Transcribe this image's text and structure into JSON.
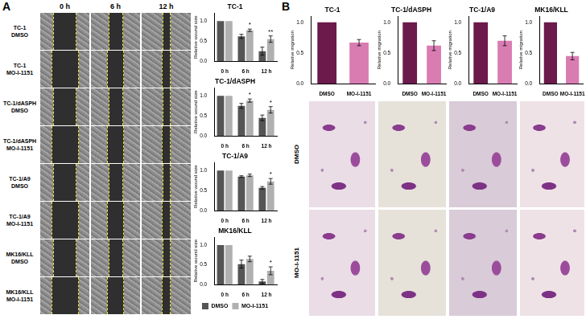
{
  "panel_labels": [
    "A",
    "B"
  ],
  "wound_images": {
    "columns": [
      "0 h",
      "6 h",
      "12 h"
    ],
    "rows": [
      [
        "TC-1",
        "DMSO"
      ],
      [
        "TC-1",
        "MO-I-1151"
      ],
      [
        "TC-1/dASPH",
        "DMSO"
      ],
      [
        "TC-1/dASPH",
        "MO-I-1151"
      ],
      [
        "TC-1/A9",
        "DMSO"
      ],
      [
        "TC-1/A9",
        "MO-I-1151"
      ],
      [
        "MK16/KLL",
        "DMSO"
      ],
      [
        "MK16/KLL",
        "MO-I-1151"
      ]
    ]
  },
  "transwell_images": {
    "rows": [
      "DMSO",
      "MO-I-1151"
    ]
  },
  "chart_data": [
    {
      "type": "bar",
      "title": "TC-1",
      "ylabel": "Relative wound size",
      "categories": [
        "0 h",
        "6 h",
        "12 h"
      ],
      "series": [
        {
          "name": "DMSO",
          "color": "#555555",
          "values": [
            1,
            0.62,
            0.25
          ],
          "errors": [
            null,
            0.05,
            0.1
          ]
        },
        {
          "name": "MO-I-1151",
          "color": "#b0b0b0",
          "values": [
            1,
            0.77,
            0.55
          ],
          "errors": [
            null,
            0.03,
            0.08
          ],
          "annotations": [
            null,
            "*",
            "**"
          ]
        }
      ],
      "ylim": [
        0,
        1.2
      ],
      "yticks": [
        {
          "value": 0,
          "label": "0.0"
        },
        {
          "value": 0.5,
          "label": "0.5"
        },
        {
          "value": 1,
          "label": "1.0"
        }
      ],
      "grid": false
    },
    {
      "type": "bar",
      "title": "TC-1/dASPH",
      "ylabel": "Relative wound size",
      "categories": [
        "0 h",
        "6 h",
        "12 h"
      ],
      "series": [
        {
          "name": "DMSO",
          "color": "#555555",
          "values": [
            1,
            0.75,
            0.45
          ],
          "errors": [
            null,
            0.06,
            0.07
          ]
        },
        {
          "name": "MO-I-1151",
          "color": "#b0b0b0",
          "values": [
            1,
            0.88,
            0.65
          ],
          "errors": [
            null,
            0.04,
            0.08
          ],
          "annotations": [
            null,
            "*",
            "*"
          ]
        }
      ],
      "ylim": [
        0,
        1.2
      ],
      "yticks": [
        {
          "value": 0,
          "label": "0.0"
        },
        {
          "value": 0.5,
          "label": "0.5"
        },
        {
          "value": 1,
          "label": "1.0"
        }
      ],
      "grid": false
    },
    {
      "type": "bar",
      "title": "TC-1/A9",
      "ylabel": "Relative wound size",
      "categories": [
        "0 h",
        "6 h",
        "12 h"
      ],
      "series": [
        {
          "name": "DMSO",
          "color": "#555555",
          "values": [
            1,
            0.85,
            0.57
          ],
          "errors": [
            null,
            0.02,
            0.03
          ]
        },
        {
          "name": "MO-I-1151",
          "color": "#b0b0b0",
          "values": [
            1,
            0.88,
            0.73
          ],
          "errors": [
            null,
            0.03,
            0.07
          ],
          "annotations": [
            null,
            null,
            "*"
          ]
        }
      ],
      "ylim": [
        0,
        1.2
      ],
      "yticks": [
        {
          "value": 0,
          "label": "0.0"
        },
        {
          "value": 0.5,
          "label": "0.5"
        },
        {
          "value": 1,
          "label": "1.0"
        }
      ],
      "grid": false
    },
    {
      "type": "bar",
      "title": "MK16/KLL",
      "ylabel": "Relative wound size",
      "categories": [
        "0 h",
        "6 h",
        "12 h"
      ],
      "series": [
        {
          "name": "DMSO",
          "color": "#555555",
          "values": [
            1,
            0.52,
            0.08
          ],
          "errors": [
            null,
            0.1,
            0.05
          ]
        },
        {
          "name": "MO-I-1151",
          "color": "#b0b0b0",
          "values": [
            1,
            0.65,
            0.35
          ],
          "errors": [
            null,
            0.07,
            0.1
          ],
          "annotations": [
            null,
            null,
            "*"
          ]
        }
      ],
      "ylim": [
        0,
        1.2
      ],
      "yticks": [
        {
          "value": 0,
          "label": "0.0"
        },
        {
          "value": 0.5,
          "label": "0.5"
        },
        {
          "value": 1,
          "label": "1.0"
        }
      ],
      "grid": false,
      "legend": "bottom"
    },
    {
      "type": "bar",
      "title": "TC-1",
      "ylabel": "Relative migration",
      "categories": [
        "DMSO",
        "MO-I-1151"
      ],
      "values": [
        1,
        0.67
      ],
      "colors": [
        "#6b1a4b",
        "#d97cb2"
      ],
      "errors": [
        null,
        0.05
      ],
      "ylim": [
        0,
        1.1
      ],
      "yticks": [
        {
          "value": 0,
          "label": "0.0"
        },
        {
          "value": 0.5,
          "label": "0.5"
        },
        {
          "value": 1,
          "label": "1.0"
        }
      ],
      "grid": false
    },
    {
      "type": "bar",
      "title": "TC-1/dASPH",
      "ylabel": "Relative migration",
      "categories": [
        "DMSO",
        "MO-I-1151"
      ],
      "values": [
        1,
        0.62
      ],
      "colors": [
        "#6b1a4b",
        "#d97cb2"
      ],
      "errors": [
        null,
        0.08
      ],
      "ylim": [
        0,
        1.1
      ],
      "yticks": [
        {
          "value": 0,
          "label": "0.0"
        },
        {
          "value": 0.5,
          "label": "0.5"
        },
        {
          "value": 1,
          "label": "1.0"
        }
      ],
      "grid": false
    },
    {
      "type": "bar",
      "title": "TC-1/A9",
      "ylabel": "Relative migration",
      "categories": [
        "DMSO",
        "MO-I-1151"
      ],
      "values": [
        1,
        0.7
      ],
      "colors": [
        "#6b1a4b",
        "#d97cb2"
      ],
      "errors": [
        null,
        0.08
      ],
      "ylim": [
        0,
        1.1
      ],
      "yticks": [
        {
          "value": 0,
          "label": "0.0"
        },
        {
          "value": 0.5,
          "label": "0.5"
        },
        {
          "value": 1,
          "label": "1.0"
        }
      ],
      "grid": false
    },
    {
      "type": "bar",
      "title": "MK16/KLL",
      "ylabel": "Relative migration",
      "categories": [
        "DMSO",
        "MO-I-1151"
      ],
      "values": [
        1,
        0.45
      ],
      "colors": [
        "#6b1a4b",
        "#d97cb2"
      ],
      "errors": [
        null,
        0.06
      ],
      "ylim": [
        0,
        1.1
      ],
      "yticks": [
        {
          "value": 0,
          "label": "0.0"
        },
        {
          "value": 0.5,
          "label": "0.5"
        },
        {
          "value": 1,
          "label": "1.0"
        }
      ],
      "grid": false
    }
  ]
}
